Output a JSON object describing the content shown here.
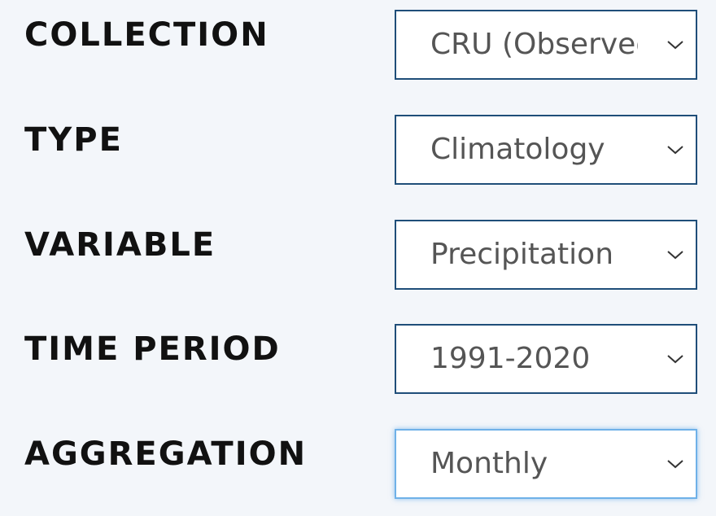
{
  "fields": [
    {
      "label": "COLLECTION",
      "value": "CRU (Observed)",
      "icon": "chevron-down-icon"
    },
    {
      "label": "TYPE",
      "value": "Climatology",
      "icon": "chevron-down-icon"
    },
    {
      "label": "VARIABLE",
      "value": "Precipitation",
      "icon": "chevron-down-icon"
    },
    {
      "label": "TIME PERIOD",
      "value": "1991-2020",
      "icon": "chevron-down-icon"
    },
    {
      "label": "AGGREGATION",
      "value": "Monthly",
      "icon": "chevron-down-icon"
    }
  ],
  "colors": {
    "background": "#f3f6fa",
    "select_border": "#1f4e79",
    "focus_border": "#6fb1e8",
    "label_text": "#111111",
    "value_text": "#555555"
  }
}
